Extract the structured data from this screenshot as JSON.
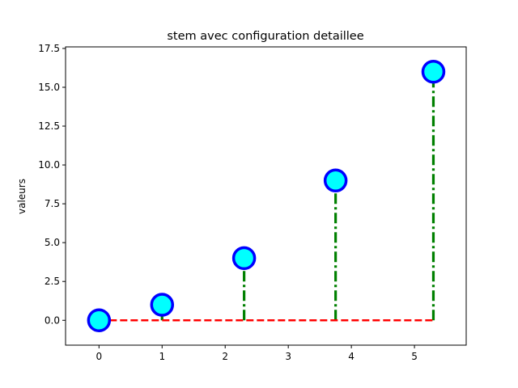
{
  "chart_data": {
    "type": "stem",
    "title": "stem avec configuration detaillee",
    "xlabel": "",
    "ylabel": "valeurs",
    "xlim": [
      -0.53,
      5.82
    ],
    "ylim": [
      -1.6,
      17.6
    ],
    "xticks": [
      0,
      1,
      2,
      3,
      4,
      5
    ],
    "xtick_labels": [
      "0",
      "1",
      "2",
      "3",
      "4",
      "5"
    ],
    "yticks": [
      0,
      2.5,
      5,
      7.5,
      10,
      12.5,
      15,
      17.5
    ],
    "ytick_labels": [
      "0.0",
      "2.5",
      "5.0",
      "7.5",
      "10.0",
      "12.5",
      "15.0",
      "17.5"
    ],
    "grid": false,
    "series": [
      {
        "x": [
          0,
          1,
          2.3,
          3.75,
          5.3
        ],
        "y": [
          0,
          1,
          4,
          9,
          16
        ],
        "marker_face_color": "#00ffff",
        "marker_edge_color": "#0000ff",
        "stem_color": "#008000",
        "stem_style": "dashdot",
        "baseline_color": "#ff0000",
        "baseline_style": "dashed"
      }
    ]
  }
}
